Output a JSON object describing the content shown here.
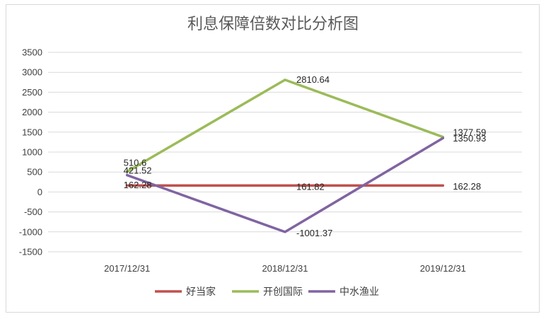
{
  "chart_data": {
    "type": "line",
    "title": "利息保障倍数对比分析图",
    "categories": [
      "2017/12/31",
      "2018/12/31",
      "2019/12/31"
    ],
    "ylim": [
      -1500,
      3500
    ],
    "yticks": [
      3500,
      3000,
      2500,
      2000,
      1500,
      1000,
      500,
      0,
      -500,
      -1000,
      -1500
    ],
    "grid": true,
    "legend_position": "bottom",
    "series": [
      {
        "name": "好当家",
        "color": "#c0504d",
        "values": [
          162.28,
          161.82,
          162.28
        ],
        "labels": [
          "162.28",
          "161.82",
          "162.28"
        ]
      },
      {
        "name": "开创国际",
        "color": "#9bbb59",
        "values": [
          510.6,
          2810.64,
          1377.59
        ],
        "labels": [
          "510.6",
          "2810.64",
          "1377.59"
        ]
      },
      {
        "name": "中水渔业",
        "color": "#8064a2",
        "values": [
          421.52,
          -1001.37,
          1350.93
        ],
        "labels": [
          "421.52",
          "-1001.37",
          "1350.93"
        ]
      }
    ]
  }
}
